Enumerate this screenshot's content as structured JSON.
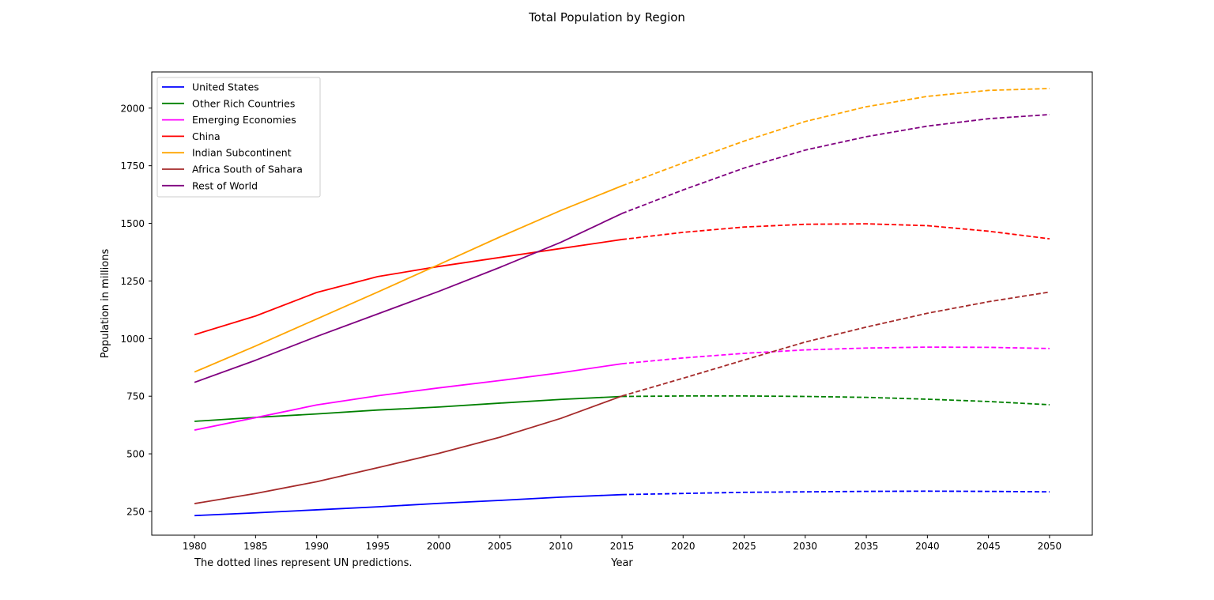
{
  "chart_data": {
    "type": "line",
    "title": "Total Population by Region",
    "xlabel": "Year",
    "ylabel": "Population in millions",
    "note": "The dotted lines represent UN predictions.",
    "xlim": [
      1976.5,
      2053.5
    ],
    "ylim": [
      147,
      2157
    ],
    "xticks": [
      1980,
      1985,
      1990,
      1995,
      2000,
      2005,
      2010,
      2015,
      2020,
      2025,
      2030,
      2035,
      2040,
      2045,
      2050
    ],
    "yticks": [
      250,
      500,
      750,
      1000,
      1250,
      1500,
      1750,
      2000
    ],
    "grid": false,
    "legend_position": "top-left",
    "observed_x": [
      1980,
      1985,
      1990,
      1995,
      2000,
      2005,
      2010,
      2015
    ],
    "predicted_x": [
      2015,
      2020,
      2025,
      2030,
      2035,
      2040,
      2045,
      2050
    ],
    "series": [
      {
        "name": "United States",
        "color": "#0000ff",
        "observed": [
          232,
          244,
          257,
          270,
          285,
          298,
          312,
          323
        ],
        "predicted": [
          323,
          328,
          333,
          335,
          337,
          338,
          337,
          335
        ]
      },
      {
        "name": "Other Rich Countries",
        "color": "#008000",
        "observed": [
          641,
          658,
          673,
          690,
          703,
          720,
          736,
          749
        ],
        "predicted": [
          749,
          751,
          751,
          749,
          745,
          737,
          727,
          713
        ]
      },
      {
        "name": "Emerging Economies",
        "color": "#ff00ff",
        "observed": [
          603,
          657,
          712,
          752,
          786,
          818,
          852,
          891
        ],
        "predicted": [
          891,
          916,
          936,
          951,
          959,
          963,
          962,
          957
        ]
      },
      {
        "name": "China",
        "color": "#ff0000",
        "observed": [
          1017,
          1098,
          1200,
          1269,
          1313,
          1352,
          1391,
          1430
        ],
        "predicted": [
          1430,
          1461,
          1484,
          1496,
          1498,
          1490,
          1466,
          1433
        ]
      },
      {
        "name": "Indian Subcontinent",
        "color": "#ffa500",
        "observed": [
          855,
          968,
          1085,
          1202,
          1321,
          1441,
          1556,
          1663
        ],
        "predicted": [
          1663,
          1762,
          1857,
          1942,
          2006,
          2051,
          2077,
          2085
        ]
      },
      {
        "name": "Africa South of Sahara",
        "color": "#a52a2a",
        "observed": [
          284,
          328,
          379,
          440,
          502,
          572,
          654,
          751
        ],
        "predicted": [
          751,
          828,
          907,
          985,
          1050,
          1110,
          1160,
          1202
        ]
      },
      {
        "name": "Rest of World",
        "color": "#800080",
        "observed": [
          810,
          906,
          1009,
          1107,
          1205,
          1309,
          1418,
          1543
        ],
        "predicted": [
          1543,
          1645,
          1740,
          1818,
          1876,
          1922,
          1954,
          1972
        ]
      }
    ]
  }
}
